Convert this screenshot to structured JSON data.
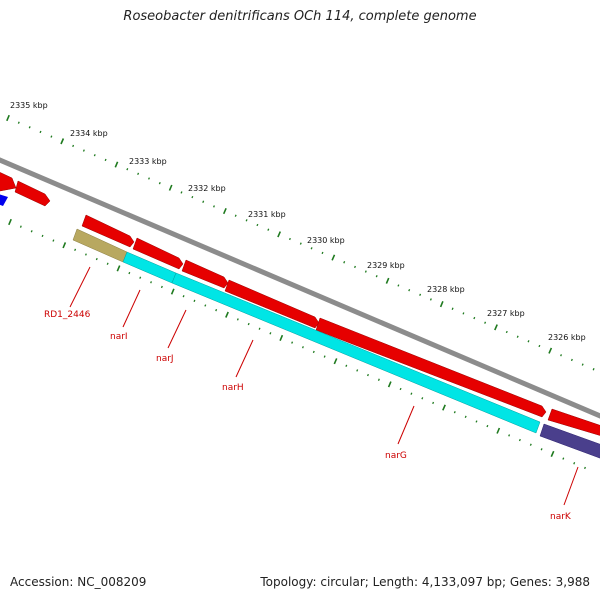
{
  "title": "Roseobacter denitrificans OCh 114, complete genome",
  "footer": {
    "accession": "Accession: NC_008209",
    "summary": "Topology: circular; Length: 4,133,097 bp; Genes: 3,988"
  },
  "scale_labels": [
    "2335 kbp",
    "2334 kbp",
    "2333 kbp",
    "2332 kbp",
    "2331 kbp",
    "2330 kbp",
    "2329 kbp",
    "2328 kbp",
    "2327 kbp",
    "2326 kbp"
  ],
  "gene_labels": [
    "RD1_2446",
    "narI",
    "narJ",
    "narH",
    "narG",
    "narK"
  ],
  "colors": {
    "backbone": "#808080",
    "forward_cds": "#e60000",
    "reverse_cds": "#00e5e5",
    "olive_feature": "#b8a860",
    "purple_feature": "#4a3f8c",
    "blue_feature": "#0000ee",
    "ticks": "#1f7a1f",
    "label_color": "#cc0000"
  }
}
